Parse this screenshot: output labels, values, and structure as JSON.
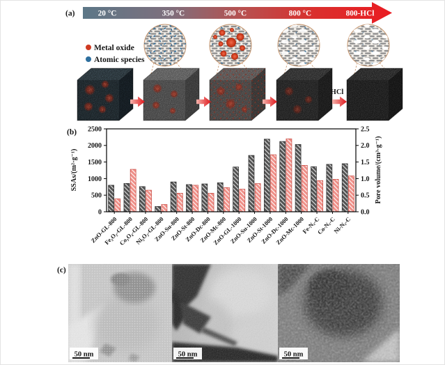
{
  "panel_a": {
    "label": "(a)",
    "temperature_steps": [
      "20 °C",
      "350 °C",
      "500 °C",
      "800 °C",
      "800-HCl"
    ],
    "legend": {
      "metal_oxide": {
        "label": "Metal oxide",
        "color": "#cf3a22"
      },
      "atomic_species": {
        "label": "Atomic species",
        "color": "#2e6f9e"
      }
    },
    "hcl_arrow_label": "HCl",
    "arrow_gradient": [
      "#5c7787",
      "#7e6f7d",
      "#b8504f",
      "#ea1c22"
    ]
  },
  "panel_b": {
    "label": "(b)"
  },
  "chart_data": {
    "type": "bar",
    "title": "",
    "categories": [
      "ZnO-GL-800",
      "Fe₂O₃-GL-800",
      "Co₃O₄-GL-800",
      "Ni₂O₃-GL-800",
      "ZnO-Su-800",
      "ZnO-St-800",
      "ZnO-Dc-800",
      "ZnO-Mc-800",
      "ZnO-GL-1000",
      "ZnO-Su-1000",
      "ZnO-St-1000",
      "ZnO-Dc-1000",
      "ZnO-Mc-1000",
      "Fe-Nₓ-C",
      "Co-Nₓ-C",
      "Ni-Nₓ-C"
    ],
    "series": [
      {
        "name": "SSA",
        "axis": "left",
        "color": "#525252",
        "hatch": "diagonal",
        "values": [
          800,
          855,
          760,
          160,
          900,
          820,
          840,
          875,
          1350,
          1700,
          2190,
          2120,
          2030,
          1360,
          1430,
          1450
        ]
      },
      {
        "name": "Pore volume",
        "axis": "right",
        "color": "#ef8f88",
        "hatch": "diagonal",
        "values": [
          0.39,
          1.28,
          0.65,
          0.22,
          0.56,
          0.8,
          0.56,
          0.73,
          0.68,
          0.85,
          1.72,
          2.2,
          1.4,
          0.94,
          0.98,
          1.08
        ]
      }
    ],
    "ylabel_left": "SSAs/(m²·g⁻¹)",
    "ylabel_right": "Pore volume/(cm³·g⁻¹)",
    "ylim_left": [
      0,
      2500
    ],
    "ylim_right": [
      0,
      2.5
    ],
    "yticks_left": [
      "0",
      "500",
      "1000",
      "1500",
      "2000",
      "2500"
    ],
    "yticks_right": [
      "0.0",
      "0.5",
      "1.0",
      "1.5",
      "2.0",
      "2.5"
    ],
    "grid": false,
    "legend_position": "none"
  },
  "panel_c": {
    "label": "(c)",
    "images": [
      {
        "scale_bar": "50 nm"
      },
      {
        "scale_bar": "50 nm"
      },
      {
        "scale_bar": "50 nm"
      }
    ]
  }
}
